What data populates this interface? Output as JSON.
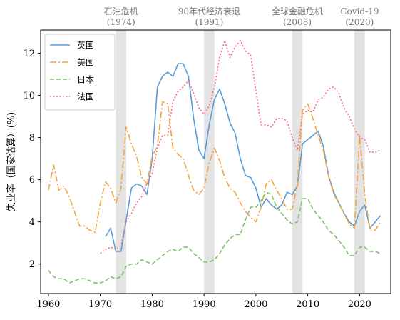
{
  "chart_data": {
    "type": "line",
    "title": "",
    "xlabel": "",
    "ylabel": "失业率（国家估算）(%)",
    "xlim": [
      1958.5,
      2026
    ],
    "ylim": [
      0.6,
      13.1
    ],
    "xticks": [
      1960,
      1970,
      1980,
      1990,
      2000,
      2010,
      2020
    ],
    "yticks": [
      2,
      4,
      6,
      8,
      10,
      12
    ],
    "grid": false,
    "legend_position": "top-left",
    "events": [
      {
        "name": "石油危机",
        "period": "(1974)",
        "start": 1973,
        "end": 1975
      },
      {
        "name": "90年代经济衰退",
        "period": "(1991)",
        "start": 1990,
        "end": 1992
      },
      {
        "name": "全球金融危机",
        "period": "(2008)",
        "start": 2007,
        "end": 2009
      },
      {
        "name": "Covid-19",
        "period": "(2020)",
        "start": 2019,
        "end": 2021
      }
    ],
    "series": [
      {
        "name": "英国",
        "color": "#5b9bd5",
        "dash": "solid",
        "x": [
          1971,
          1972,
          1973,
          1974,
          1975,
          1976,
          1977,
          1978,
          1979,
          1980,
          1981,
          1982,
          1983,
          1984,
          1985,
          1986,
          1987,
          1988,
          1989,
          1990,
          1991,
          1992,
          1993,
          1994,
          1995,
          1996,
          1997,
          1998,
          1999,
          2000,
          2001,
          2002,
          2003,
          2004,
          2005,
          2006,
          2007,
          2008,
          2009,
          2010,
          2011,
          2012,
          2013,
          2014,
          2015,
          2016,
          2017,
          2018,
          2019,
          2020,
          2021,
          2022,
          2023,
          2024
        ],
        "y": [
          3.3,
          3.7,
          2.6,
          2.6,
          4.1,
          5.6,
          5.8,
          5.7,
          5.3,
          7.0,
          10.4,
          10.9,
          11.1,
          10.9,
          11.5,
          11.5,
          10.9,
          8.9,
          7.4,
          7.0,
          8.6,
          9.8,
          10.3,
          9.6,
          8.7,
          8.2,
          7.0,
          6.2,
          6.1,
          5.6,
          4.7,
          5.1,
          4.8,
          4.6,
          4.8,
          5.4,
          5.3,
          5.7,
          7.7,
          7.9,
          8.1,
          8.3,
          7.6,
          6.2,
          5.4,
          4.9,
          4.4,
          4.0,
          3.8,
          4.5,
          4.8,
          3.7,
          4.0,
          4.3
        ]
      },
      {
        "name": "美国",
        "color": "#f5a442",
        "dash": "dashdot",
        "x": [
          1960,
          1961,
          1962,
          1963,
          1964,
          1965,
          1966,
          1967,
          1968,
          1969,
          1970,
          1971,
          1972,
          1973,
          1974,
          1975,
          1976,
          1977,
          1978,
          1979,
          1980,
          1981,
          1982,
          1983,
          1984,
          1985,
          1986,
          1987,
          1988,
          1989,
          1990,
          1991,
          1992,
          1993,
          1994,
          1995,
          1996,
          1997,
          1998,
          1999,
          2000,
          2001,
          2002,
          2003,
          2004,
          2005,
          2006,
          2007,
          2008,
          2009,
          2010,
          2011,
          2012,
          2013,
          2014,
          2015,
          2016,
          2017,
          2018,
          2019,
          2020,
          2021,
          2022,
          2023,
          2024
        ],
        "y": [
          5.5,
          6.7,
          5.5,
          5.7,
          5.2,
          4.5,
          3.8,
          3.8,
          3.6,
          3.5,
          4.9,
          5.9,
          5.6,
          4.9,
          5.6,
          8.5,
          7.7,
          7.1,
          6.1,
          5.8,
          7.1,
          7.6,
          9.7,
          9.6,
          7.5,
          7.2,
          7.0,
          6.2,
          5.5,
          5.3,
          5.6,
          6.8,
          7.5,
          6.9,
          6.1,
          5.6,
          5.4,
          4.9,
          4.5,
          4.2,
          4.0,
          4.7,
          5.8,
          6.0,
          5.5,
          5.1,
          4.6,
          4.6,
          5.8,
          9.3,
          9.6,
          8.9,
          8.1,
          7.4,
          6.2,
          5.3,
          4.9,
          4.4,
          3.9,
          3.7,
          8.1,
          5.3,
          3.6,
          3.6,
          4.0
        ]
      },
      {
        "name": "日本",
        "color": "#7bc36a",
        "dash": "dashed",
        "x": [
          1960,
          1961,
          1962,
          1963,
          1964,
          1965,
          1966,
          1967,
          1968,
          1969,
          1970,
          1971,
          1972,
          1973,
          1974,
          1975,
          1976,
          1977,
          1978,
          1979,
          1980,
          1981,
          1982,
          1983,
          1984,
          1985,
          1986,
          1987,
          1988,
          1989,
          1990,
          1991,
          1992,
          1993,
          1994,
          1995,
          1996,
          1997,
          1998,
          1999,
          2000,
          2001,
          2002,
          2003,
          2004,
          2005,
          2006,
          2007,
          2008,
          2009,
          2010,
          2011,
          2012,
          2013,
          2014,
          2015,
          2016,
          2017,
          2018,
          2019,
          2020,
          2021,
          2022,
          2023,
          2024
        ],
        "y": [
          1.7,
          1.4,
          1.3,
          1.3,
          1.1,
          1.2,
          1.3,
          1.3,
          1.2,
          1.1,
          1.1,
          1.2,
          1.4,
          1.3,
          1.4,
          1.9,
          2.0,
          2.0,
          2.2,
          2.1,
          2.0,
          2.2,
          2.4,
          2.6,
          2.7,
          2.6,
          2.8,
          2.8,
          2.5,
          2.3,
          2.1,
          2.1,
          2.2,
          2.5,
          2.9,
          3.2,
          3.4,
          3.4,
          4.1,
          4.7,
          4.7,
          5.0,
          5.4,
          5.3,
          4.7,
          4.4,
          4.1,
          3.9,
          4.0,
          5.1,
          5.1,
          4.6,
          4.3,
          4.0,
          3.6,
          3.4,
          3.1,
          2.8,
          2.4,
          2.4,
          2.8,
          2.8,
          2.6,
          2.6,
          2.5
        ]
      },
      {
        "name": "法国",
        "color": "#ff6b7a",
        "dash": "dotted",
        "x": [
          1970,
          1971,
          1972,
          1973,
          1974,
          1975,
          1976,
          1977,
          1978,
          1979,
          1980,
          1981,
          1982,
          1983,
          1984,
          1985,
          1986,
          1987,
          1988,
          1989,
          1990,
          1991,
          1992,
          1993,
          1994,
          1995,
          1996,
          1997,
          1998,
          1999,
          2000,
          2001,
          2002,
          2003,
          2004,
          2005,
          2006,
          2007,
          2008,
          2009,
          2010,
          2011,
          2012,
          2013,
          2014,
          2015,
          2016,
          2017,
          2018,
          2019,
          2020,
          2021,
          2022,
          2023,
          2024
        ],
        "y": [
          2.5,
          2.7,
          2.8,
          2.7,
          2.9,
          4.0,
          4.4,
          4.9,
          5.2,
          5.8,
          6.3,
          7.5,
          8.1,
          8.1,
          9.7,
          10.2,
          10.4,
          10.7,
          10.1,
          9.4,
          9.1,
          9.5,
          10.4,
          11.8,
          12.6,
          11.8,
          12.3,
          12.6,
          12.1,
          11.9,
          10.2,
          8.6,
          8.6,
          8.5,
          8.9,
          8.9,
          8.8,
          8.0,
          7.4,
          9.1,
          9.3,
          9.2,
          9.8,
          9.9,
          10.3,
          10.4,
          10.1,
          9.4,
          9.0,
          8.4,
          8.0,
          7.9,
          7.3,
          7.3,
          7.4
        ]
      }
    ]
  }
}
